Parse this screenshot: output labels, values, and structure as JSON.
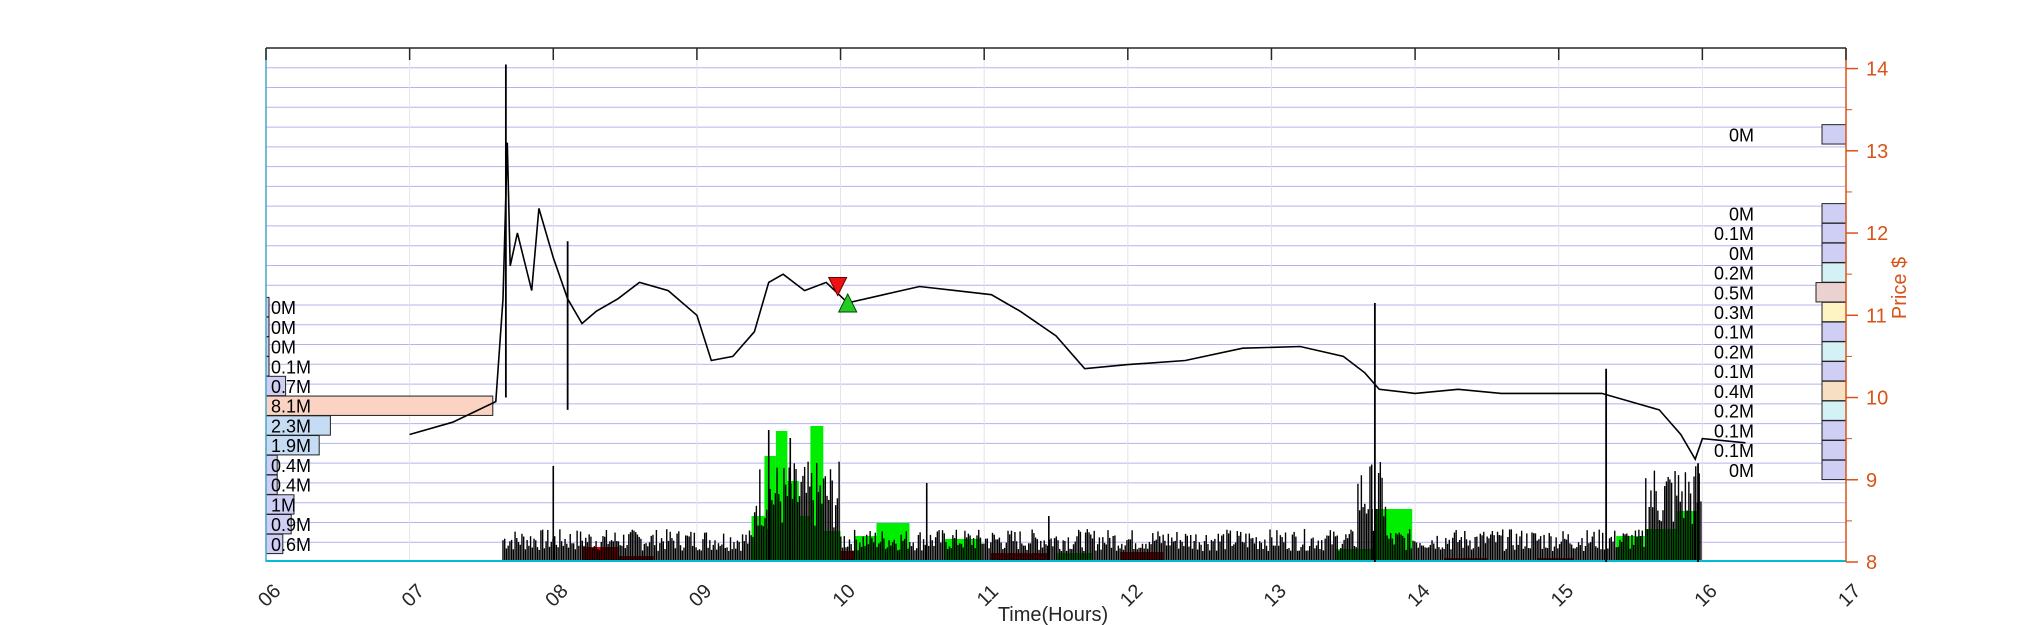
{
  "chart_data": {
    "type": "line",
    "xlabel": "Time(Hours)",
    "ylabel": "Price $",
    "xlim": [
      6,
      17
    ],
    "ylim": [
      8,
      14.25
    ],
    "x_ticks": [
      6,
      7,
      8,
      9,
      10,
      11,
      12,
      13,
      14,
      15,
      16,
      17
    ],
    "x_tick_labels": [
      "06",
      "07",
      "08",
      "09",
      "10",
      "11",
      "12",
      "13",
      "14",
      "15",
      "16",
      "17"
    ],
    "y_ticks": [
      8,
      9,
      10,
      11,
      12,
      13,
      14
    ],
    "y_tick_labels": [
      "8",
      "9",
      "10",
      "11",
      "12",
      "13",
      "14"
    ],
    "grid": "horizontal",
    "colors": {
      "price": "#000000",
      "right_axis": "#d95319",
      "grid": "#b3b3f0",
      "volume_up": "#00ee00",
      "volume_down": "#ee0000",
      "buy_marker": "#22cc22",
      "sell_marker": "#ee1111"
    },
    "price_series": [
      [
        7.0,
        9.55
      ],
      [
        7.3,
        9.7
      ],
      [
        7.6,
        9.95
      ],
      [
        7.65,
        11.2
      ],
      [
        7.68,
        13.1
      ],
      [
        7.7,
        11.6
      ],
      [
        7.75,
        12.0
      ],
      [
        7.85,
        11.3
      ],
      [
        7.9,
        12.3
      ],
      [
        8.0,
        11.7
      ],
      [
        8.1,
        11.2
      ],
      [
        8.2,
        10.9
      ],
      [
        8.3,
        11.05
      ],
      [
        8.45,
        11.2
      ],
      [
        8.6,
        11.4
      ],
      [
        8.8,
        11.3
      ],
      [
        9.0,
        11.0
      ],
      [
        9.1,
        10.45
      ],
      [
        9.25,
        10.5
      ],
      [
        9.4,
        10.8
      ],
      [
        9.5,
        11.4
      ],
      [
        9.6,
        11.5
      ],
      [
        9.75,
        11.3
      ],
      [
        9.9,
        11.4
      ],
      [
        10.05,
        11.15
      ],
      [
        10.3,
        11.25
      ],
      [
        10.55,
        11.35
      ],
      [
        10.8,
        11.3
      ],
      [
        11.05,
        11.25
      ],
      [
        11.25,
        11.05
      ],
      [
        11.5,
        10.75
      ],
      [
        11.7,
        10.35
      ],
      [
        12.0,
        10.4
      ],
      [
        12.4,
        10.45
      ],
      [
        12.8,
        10.6
      ],
      [
        13.2,
        10.62
      ],
      [
        13.5,
        10.5
      ],
      [
        13.65,
        10.3
      ],
      [
        13.75,
        10.1
      ],
      [
        14.0,
        10.05
      ],
      [
        14.3,
        10.1
      ],
      [
        14.6,
        10.05
      ],
      [
        15.0,
        10.05
      ],
      [
        15.3,
        10.05
      ],
      [
        15.5,
        9.95
      ],
      [
        15.7,
        9.85
      ],
      [
        15.85,
        9.55
      ],
      [
        15.95,
        9.25
      ],
      [
        16.0,
        9.5
      ],
      [
        16.3,
        9.45
      ]
    ],
    "price_spikes": [
      {
        "x": 7.67,
        "low": 10.0,
        "high": 14.05
      },
      {
        "x": 8.1,
        "low": 9.85,
        "high": 11.9
      },
      {
        "x": 13.72,
        "low": 8.0,
        "high": 11.15
      },
      {
        "x": 15.33,
        "low": 8.0,
        "high": 10.35
      },
      {
        "x": 15.97,
        "low": 8.0,
        "high": 9.2
      }
    ],
    "volume_bars_up": [
      {
        "x0": 9.38,
        "x1": 9.47,
        "h": 0.45
      },
      {
        "x0": 9.47,
        "x1": 9.55,
        "h": 1.05
      },
      {
        "x0": 9.55,
        "x1": 9.63,
        "h": 1.3
      },
      {
        "x0": 9.63,
        "x1": 9.71,
        "h": 0.8
      },
      {
        "x0": 9.71,
        "x1": 9.79,
        "h": 0.45
      },
      {
        "x0": 9.79,
        "x1": 9.88,
        "h": 1.35
      },
      {
        "x0": 9.88,
        "x1": 10.0,
        "h": 0.3
      },
      {
        "x0": 10.1,
        "x1": 10.25,
        "h": 0.25
      },
      {
        "x0": 10.25,
        "x1": 10.48,
        "h": 0.38
      },
      {
        "x0": 10.72,
        "x1": 10.98,
        "h": 0.22
      },
      {
        "x0": 11.5,
        "x1": 11.75,
        "h": 0.08
      },
      {
        "x0": 13.45,
        "x1": 13.72,
        "h": 0.12
      },
      {
        "x0": 13.72,
        "x1": 13.98,
        "h": 0.52
      },
      {
        "x0": 15.4,
        "x1": 15.6,
        "h": 0.25
      },
      {
        "x0": 15.6,
        "x1": 15.82,
        "h": 0.32
      },
      {
        "x0": 15.82,
        "x1": 15.98,
        "h": 0.5
      }
    ],
    "volume_bars_down": [
      {
        "x0": 8.2,
        "x1": 8.45,
        "h": 0.14
      },
      {
        "x0": 8.45,
        "x1": 8.7,
        "h": 0.05
      },
      {
        "x0": 10.0,
        "x1": 10.1,
        "h": 0.1
      },
      {
        "x0": 11.05,
        "x1": 11.45,
        "h": 0.08
      },
      {
        "x0": 11.95,
        "x1": 12.25,
        "h": 0.09
      },
      {
        "x0": 14.2,
        "x1": 14.5,
        "h": 0.03
      },
      {
        "x0": 14.85,
        "x1": 15.1,
        "h": 0.03
      }
    ],
    "trade_markers": [
      {
        "type": "sell",
        "x": 9.98,
        "y": 11.35
      },
      {
        "type": "buy",
        "x": 10.05,
        "y": 11.15
      }
    ],
    "volume_profile_left": [
      {
        "price": 11.1,
        "label": "0M",
        "size": 0.0
      },
      {
        "price": 10.86,
        "label": "0M",
        "size": 0.0
      },
      {
        "price": 10.62,
        "label": "0M",
        "size": 0.0
      },
      {
        "price": 10.38,
        "label": "0.1M",
        "size": 0.1
      },
      {
        "price": 10.14,
        "label": "0.7M",
        "size": 0.7
      },
      {
        "price": 9.9,
        "label": "8.1M",
        "size": 8.1
      },
      {
        "price": 9.66,
        "label": "2.3M",
        "size": 2.3
      },
      {
        "price": 9.42,
        "label": "1.9M",
        "size": 1.9
      },
      {
        "price": 9.18,
        "label": "0.4M",
        "size": 0.4
      },
      {
        "price": 8.94,
        "label": "0.4M",
        "size": 0.4
      },
      {
        "price": 8.7,
        "label": "1M",
        "size": 1.0
      },
      {
        "price": 8.46,
        "label": "0.9M",
        "size": 0.9
      },
      {
        "price": 8.22,
        "label": "0.6M",
        "size": 0.6
      }
    ],
    "volume_profile_right": [
      {
        "price": 13.2,
        "label": "0M",
        "size": 0.0
      },
      {
        "price": 12.24,
        "label": "0M",
        "size": 0.0
      },
      {
        "price": 12.0,
        "label": "0.1M",
        "size": 0.1
      },
      {
        "price": 11.76,
        "label": "0M",
        "size": 0.0
      },
      {
        "price": 11.52,
        "label": "0.2M",
        "size": 0.2
      },
      {
        "price": 11.28,
        "label": "0.5M",
        "size": 0.5
      },
      {
        "price": 11.04,
        "label": "0.3M",
        "size": 0.3
      },
      {
        "price": 10.8,
        "label": "0.1M",
        "size": 0.1
      },
      {
        "price": 10.56,
        "label": "0.2M",
        "size": 0.2
      },
      {
        "price": 10.32,
        "label": "0.1M",
        "size": 0.1
      },
      {
        "price": 10.08,
        "label": "0.4M",
        "size": 0.4
      },
      {
        "price": 9.84,
        "label": "0.2M",
        "size": 0.2
      },
      {
        "price": 9.6,
        "label": "0.1M",
        "size": 0.1
      },
      {
        "price": 9.36,
        "label": "0.1M",
        "size": 0.1
      },
      {
        "price": 9.12,
        "label": "0M",
        "size": 0.0
      }
    ]
  }
}
